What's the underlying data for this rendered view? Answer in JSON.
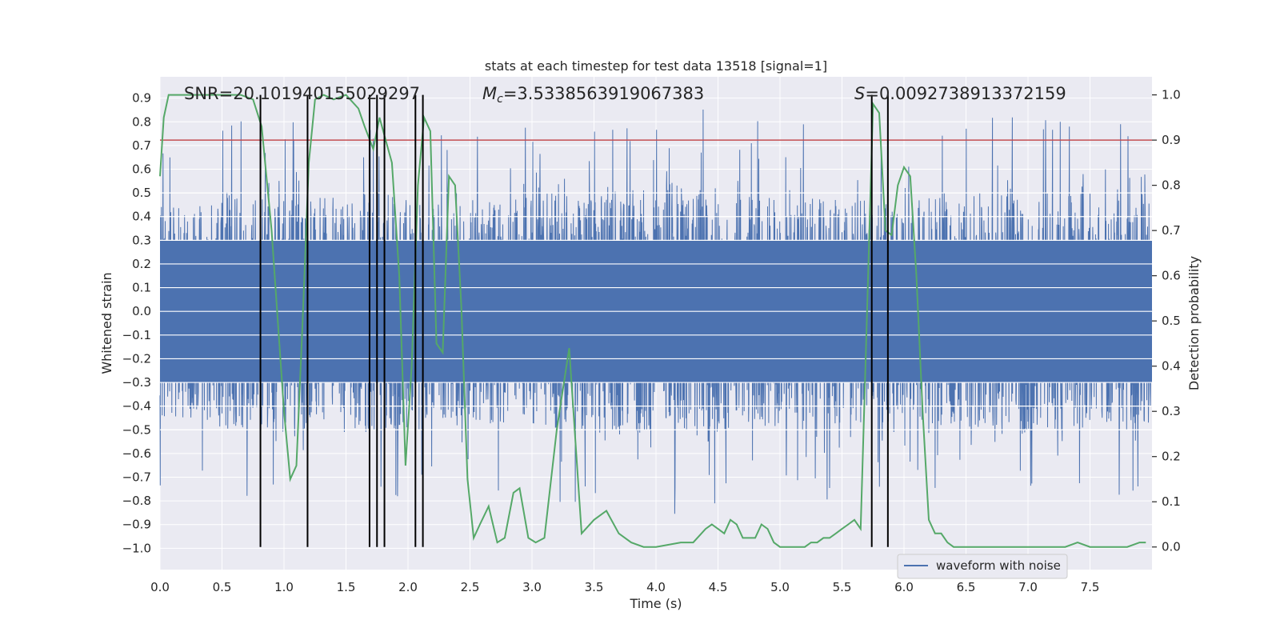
{
  "chart_data": {
    "type": "line",
    "title": "stats at each timestep for test data 13518 [signal=1]",
    "xlabel": "Time (s)",
    "ylabel_left": "Whitened strain",
    "ylabel_right": "Detection probability",
    "xlim": [
      0.0,
      8.0
    ],
    "ylim_left": [
      -1.09,
      0.99
    ],
    "ylim_right": [
      -0.05,
      1.04
    ],
    "x_ticks": [
      "0.0",
      "0.5",
      "1.0",
      "1.5",
      "2.0",
      "2.5",
      "3.0",
      "3.5",
      "4.0",
      "4.5",
      "5.0",
      "5.5",
      "6.0",
      "6.5",
      "7.0",
      "7.5"
    ],
    "y_left_ticks": [
      "0.9",
      "0.8",
      "0.7",
      "0.6",
      "0.5",
      "0.4",
      "0.3",
      "0.2",
      "0.1",
      "0.0",
      "−0.1",
      "−0.2",
      "−0.3",
      "−0.4",
      "−0.5",
      "−0.6",
      "−0.7",
      "−0.8",
      "−0.9",
      "−1.0"
    ],
    "y_right_ticks": [
      "1.0",
      "0.9",
      "0.8",
      "0.7",
      "0.6",
      "0.5",
      "0.4",
      "0.3",
      "0.2",
      "0.1",
      "0.0"
    ],
    "grid": true,
    "legend": {
      "entries": [
        "waveform with noise"
      ],
      "position": "lower-right"
    },
    "annotations": {
      "snr": "SNR=20.101940155029297",
      "mc_symbol": "M",
      "mc_sub": "c",
      "mc_value": "=3.5338563919067383",
      "s_symbol": "S",
      "s_value": "=0.0092738913372159"
    },
    "threshold": {
      "value": 0.9,
      "axis": "right",
      "color": "#c44e52"
    },
    "vertical_markers": [
      0.81,
      1.19,
      1.69,
      1.75,
      1.81,
      2.06,
      2.12,
      5.74,
      5.87
    ],
    "waveform": {
      "name": "waveform with noise",
      "color": "#4c72b0",
      "core_range": [
        -0.3,
        0.3
      ],
      "envelope": [
        0.45,
        0.5,
        0.48,
        0.5,
        0.46,
        0.48,
        0.5,
        0.52,
        0.55,
        0.5,
        0.48,
        0.47,
        0.48,
        0.52,
        0.5,
        0.48
      ]
    },
    "probability": {
      "color": "#55a868",
      "x": [
        0.0,
        0.03,
        0.07,
        0.12,
        0.2,
        0.3,
        0.5,
        0.6,
        0.65,
        0.75,
        0.82,
        0.9,
        1.0,
        1.05,
        1.1,
        1.15,
        1.2,
        1.25,
        1.32,
        1.4,
        1.5,
        1.6,
        1.65,
        1.72,
        1.77,
        1.82,
        1.87,
        1.93,
        1.98,
        2.03,
        2.08,
        2.13,
        2.18,
        2.23,
        2.28,
        2.33,
        2.38,
        2.43,
        2.48,
        2.53,
        2.58,
        2.65,
        2.72,
        2.78,
        2.85,
        2.9,
        2.97,
        3.03,
        3.1,
        3.2,
        3.3,
        3.4,
        3.5,
        3.6,
        3.7,
        3.8,
        3.9,
        4.0,
        4.2,
        4.3,
        4.4,
        4.45,
        4.5,
        4.55,
        4.6,
        4.65,
        4.7,
        4.8,
        4.85,
        4.9,
        4.95,
        5.0,
        5.05,
        5.1,
        5.2,
        5.25,
        5.3,
        5.35,
        5.4,
        5.45,
        5.5,
        5.55,
        5.6,
        5.65,
        5.7,
        5.75,
        5.8,
        5.85,
        5.9,
        5.95,
        6.0,
        6.05,
        6.1,
        6.15,
        6.2,
        6.25,
        6.3,
        6.35,
        6.4,
        6.5,
        6.6,
        6.7,
        6.8,
        6.9,
        7.0,
        7.1,
        7.2,
        7.3,
        7.4,
        7.5,
        7.6,
        7.7,
        7.8,
        7.9,
        7.95
      ],
      "values": [
        0.82,
        0.95,
        1.0,
        1.0,
        1.0,
        1.0,
        1.0,
        1.0,
        1.0,
        0.99,
        0.93,
        0.7,
        0.3,
        0.15,
        0.18,
        0.5,
        0.85,
        0.99,
        1.0,
        0.99,
        1.0,
        0.97,
        0.93,
        0.88,
        0.95,
        0.9,
        0.85,
        0.6,
        0.18,
        0.4,
        0.8,
        0.95,
        0.92,
        0.45,
        0.43,
        0.82,
        0.8,
        0.53,
        0.15,
        0.02,
        0.05,
        0.09,
        0.01,
        0.02,
        0.12,
        0.13,
        0.02,
        0.01,
        0.02,
        0.26,
        0.44,
        0.03,
        0.06,
        0.08,
        0.03,
        0.01,
        0.0,
        0.0,
        0.01,
        0.01,
        0.04,
        0.05,
        0.04,
        0.03,
        0.06,
        0.05,
        0.02,
        0.02,
        0.05,
        0.04,
        0.01,
        0.0,
        0.0,
        0.0,
        0.0,
        0.01,
        0.01,
        0.02,
        0.02,
        0.03,
        0.04,
        0.05,
        0.06,
        0.04,
        0.5,
        0.98,
        0.96,
        0.7,
        0.69,
        0.8,
        0.84,
        0.82,
        0.6,
        0.3,
        0.06,
        0.03,
        0.03,
        0.01,
        0.0,
        0.0,
        0.0,
        0.0,
        0.0,
        0.0,
        0.0,
        0.0,
        0.0,
        0.0,
        0.01,
        0.0,
        0.0,
        0.0,
        0.0,
        0.01,
        0.01
      ]
    }
  }
}
